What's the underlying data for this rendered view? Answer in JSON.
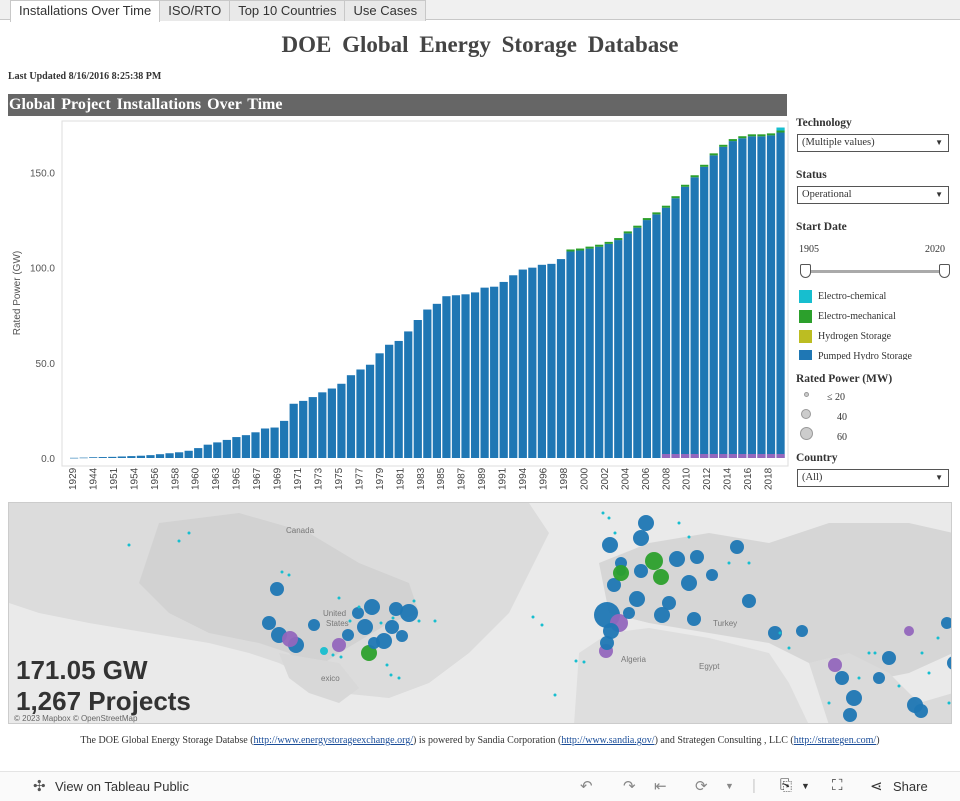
{
  "tabs": [
    {
      "label": "Installations Over Time",
      "active": true
    },
    {
      "label": "ISO/RTO",
      "active": false
    },
    {
      "label": "Top 10 Countries",
      "active": false
    },
    {
      "label": "Use Cases",
      "active": false
    }
  ],
  "title": "DOE Global Energy Storage Database",
  "last_updated": "Last Updated 8/16/2016 8:25:38 PM",
  "section_title": "Global Project Installations Over Time",
  "chart_data": {
    "type": "bar",
    "stacked": true,
    "ylabel": "Rated Power (GW)",
    "ylim": [
      0,
      180
    ],
    "yticks": [
      "0.0",
      "50.0",
      "100.0",
      "150.0"
    ],
    "ytick_values": [
      0,
      50,
      100,
      150
    ],
    "xtick_labels": [
      "1929",
      "1944",
      "1951",
      "1954",
      "1956",
      "1958",
      "1960",
      "1963",
      "1965",
      "1967",
      "1969",
      "1971",
      "1973",
      "1975",
      "1977",
      "1979",
      "1981",
      "1983",
      "1985",
      "1987",
      "1989",
      "1991",
      "1994",
      "1996",
      "1998",
      "2000",
      "2002",
      "2004",
      "2006",
      "2008",
      "2010",
      "2012",
      "2014",
      "2016",
      "2018"
    ],
    "totals": [
      0.1,
      0.2,
      0.4,
      0.5,
      0.6,
      0.8,
      1,
      1.2,
      1.5,
      2,
      2.5,
      3,
      3.8,
      5.2,
      7,
      8.2,
      9.5,
      11,
      12,
      13.5,
      15.5,
      16,
      19.5,
      28.5,
      30,
      32,
      34.5,
      36.5,
      39,
      43.5,
      46.5,
      49,
      55,
      59.5,
      61.5,
      66.5,
      72.5,
      78,
      81,
      85,
      85.5,
      86,
      87,
      89.5,
      90,
      92.5,
      96,
      99,
      100,
      101.5,
      102,
      104.5,
      108.5,
      109,
      110,
      111,
      112.5,
      114.5,
      118,
      121,
      125,
      128,
      131.5,
      136.5,
      142.5,
      147.5,
      153,
      159,
      163.5,
      166.5,
      168,
      169,
      169,
      169.5,
      171
    ],
    "series": [
      {
        "name": "Electro-chemical",
        "color": "#17becf"
      },
      {
        "name": "Electro-mechanical",
        "color": "#2ca02c"
      },
      {
        "name": "Hydrogen Storage",
        "color": "#bcbd22"
      },
      {
        "name": "Pumped Hydro Storage",
        "color": "#1f77b4"
      }
    ]
  },
  "filters": {
    "technology_label": "Technology",
    "technology_value": "(Multiple values)",
    "status_label": "Status",
    "status_value": "Operational",
    "start_date_label": "Start Date",
    "start_min": "1905",
    "start_max": "2020",
    "legend": [
      "Electro-chemical",
      "Electro-mechanical",
      "Hydrogen Storage",
      "Pumped Hydro Storage"
    ],
    "rated_power_label": "Rated Power (MW)",
    "sizes": [
      "≤ 20",
      "40",
      "60"
    ],
    "country_label": "Country",
    "country_value": "(All)"
  },
  "map": {
    "labels": {
      "canada": "Canada",
      "us1": "United",
      "us2": "States",
      "mexico": "exico",
      "algeria": "Algeria",
      "egypt": "Egypt",
      "turkey": "Turkey"
    },
    "total_power": "171.05 GW",
    "total_projects": "1,267 Projects",
    "attribution": "© 2023 Mapbox © OpenStreetMap"
  },
  "footer": {
    "p1": "The DOE Global Energy Storage Databse (",
    "link1": "http://www.energystorageexchange.org/",
    "p2": ") is powered by Sandia Corporation (",
    "link2": "http://www.sandia.gov/",
    "p3": ") and Strategen Consulting , LLC (",
    "link3": "http://strategen.com/",
    "p4": ")"
  },
  "toolbar": {
    "view_label": "View on Tableau Public",
    "share_label": "Share"
  }
}
